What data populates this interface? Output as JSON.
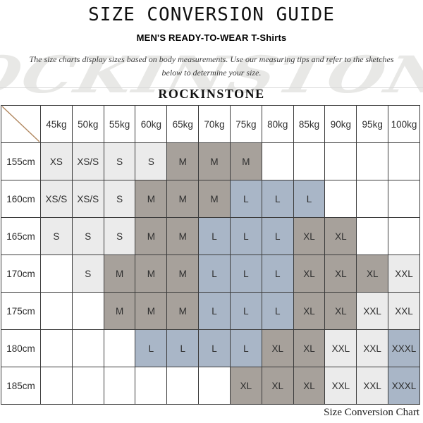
{
  "page": {
    "title": "SIZE CONVERSION GUIDE",
    "subtitle": "MEN'S READY-TO-WEAR T-Shirts",
    "instructions_line1": "The size charts display sizes based on body measurements. Use our measuring tips and refer to the sketches",
    "instructions_line2": "below to determine your size.",
    "brand": "ROCKINSTONE",
    "watermark": "ROCKINSTONE",
    "footer_caption": "Size Conversion Chart"
  },
  "colors": {
    "cell_light": "#ebebeb",
    "cell_taupe": "#a7a19b",
    "cell_blue": "#a9b6c7",
    "cell_empty": "#ffffff",
    "border": "#3c3c3c",
    "diagonal_line": "#b1875f",
    "watermark": "#e8e8e6"
  },
  "table": {
    "type": "table",
    "weights": [
      "45kg",
      "50kg",
      "55kg",
      "60kg",
      "65kg",
      "70kg",
      "75kg",
      "80kg",
      "85kg",
      "90kg",
      "95kg",
      "100kg"
    ],
    "rows": [
      {
        "height": "155cm",
        "cells": [
          {
            "size": "XS",
            "tone": "light"
          },
          {
            "size": "XS/S",
            "tone": "light"
          },
          {
            "size": "S",
            "tone": "light"
          },
          {
            "size": "S",
            "tone": "light"
          },
          {
            "size": "M",
            "tone": "taupe"
          },
          {
            "size": "M",
            "tone": "taupe"
          },
          {
            "size": "M",
            "tone": "taupe"
          },
          {
            "size": "",
            "tone": "none"
          },
          {
            "size": "",
            "tone": "none"
          },
          {
            "size": "",
            "tone": "none"
          },
          {
            "size": "",
            "tone": "none"
          },
          {
            "size": "",
            "tone": "none"
          }
        ]
      },
      {
        "height": "160cm",
        "cells": [
          {
            "size": "XS/S",
            "tone": "light"
          },
          {
            "size": "XS/S",
            "tone": "light"
          },
          {
            "size": "S",
            "tone": "light"
          },
          {
            "size": "M",
            "tone": "taupe"
          },
          {
            "size": "M",
            "tone": "taupe"
          },
          {
            "size": "M",
            "tone": "taupe"
          },
          {
            "size": "L",
            "tone": "blue"
          },
          {
            "size": "L",
            "tone": "blue"
          },
          {
            "size": "L",
            "tone": "blue"
          },
          {
            "size": "",
            "tone": "none"
          },
          {
            "size": "",
            "tone": "none"
          },
          {
            "size": "",
            "tone": "none"
          }
        ]
      },
      {
        "height": "165cm",
        "cells": [
          {
            "size": "S",
            "tone": "light"
          },
          {
            "size": "S",
            "tone": "light"
          },
          {
            "size": "S",
            "tone": "light"
          },
          {
            "size": "M",
            "tone": "taupe"
          },
          {
            "size": "M",
            "tone": "taupe"
          },
          {
            "size": "L",
            "tone": "blue"
          },
          {
            "size": "L",
            "tone": "blue"
          },
          {
            "size": "L",
            "tone": "blue"
          },
          {
            "size": "XL",
            "tone": "taupe"
          },
          {
            "size": "XL",
            "tone": "taupe"
          },
          {
            "size": "",
            "tone": "none"
          },
          {
            "size": "",
            "tone": "none"
          }
        ]
      },
      {
        "height": "170cm",
        "cells": [
          {
            "size": "",
            "tone": "none"
          },
          {
            "size": "S",
            "tone": "light"
          },
          {
            "size": "M",
            "tone": "taupe"
          },
          {
            "size": "M",
            "tone": "taupe"
          },
          {
            "size": "M",
            "tone": "taupe"
          },
          {
            "size": "L",
            "tone": "blue"
          },
          {
            "size": "L",
            "tone": "blue"
          },
          {
            "size": "L",
            "tone": "blue"
          },
          {
            "size": "XL",
            "tone": "taupe"
          },
          {
            "size": "XL",
            "tone": "taupe"
          },
          {
            "size": "XL",
            "tone": "taupe"
          },
          {
            "size": "XXL",
            "tone": "light"
          }
        ]
      },
      {
        "height": "175cm",
        "cells": [
          {
            "size": "",
            "tone": "none"
          },
          {
            "size": "",
            "tone": "none"
          },
          {
            "size": "M",
            "tone": "taupe"
          },
          {
            "size": "M",
            "tone": "taupe"
          },
          {
            "size": "M",
            "tone": "taupe"
          },
          {
            "size": "L",
            "tone": "blue"
          },
          {
            "size": "L",
            "tone": "blue"
          },
          {
            "size": "L",
            "tone": "blue"
          },
          {
            "size": "XL",
            "tone": "taupe"
          },
          {
            "size": "XL",
            "tone": "taupe"
          },
          {
            "size": "XXL",
            "tone": "light"
          },
          {
            "size": "XXL",
            "tone": "light"
          }
        ]
      },
      {
        "height": "180cm",
        "cells": [
          {
            "size": "",
            "tone": "none"
          },
          {
            "size": "",
            "tone": "none"
          },
          {
            "size": "",
            "tone": "none"
          },
          {
            "size": "L",
            "tone": "blue"
          },
          {
            "size": "L",
            "tone": "blue"
          },
          {
            "size": "L",
            "tone": "blue"
          },
          {
            "size": "L",
            "tone": "blue"
          },
          {
            "size": "XL",
            "tone": "taupe"
          },
          {
            "size": "XL",
            "tone": "taupe"
          },
          {
            "size": "XXL",
            "tone": "light"
          },
          {
            "size": "XXL",
            "tone": "light"
          },
          {
            "size": "XXXL",
            "tone": "blue"
          }
        ]
      },
      {
        "height": "185cm",
        "cells": [
          {
            "size": "",
            "tone": "none"
          },
          {
            "size": "",
            "tone": "none"
          },
          {
            "size": "",
            "tone": "none"
          },
          {
            "size": "",
            "tone": "none"
          },
          {
            "size": "",
            "tone": "none"
          },
          {
            "size": "",
            "tone": "none"
          },
          {
            "size": "XL",
            "tone": "taupe"
          },
          {
            "size": "XL",
            "tone": "taupe"
          },
          {
            "size": "XL",
            "tone": "taupe"
          },
          {
            "size": "XXL",
            "tone": "light"
          },
          {
            "size": "XXL",
            "tone": "light"
          },
          {
            "size": "XXXL",
            "tone": "blue"
          }
        ]
      }
    ]
  }
}
